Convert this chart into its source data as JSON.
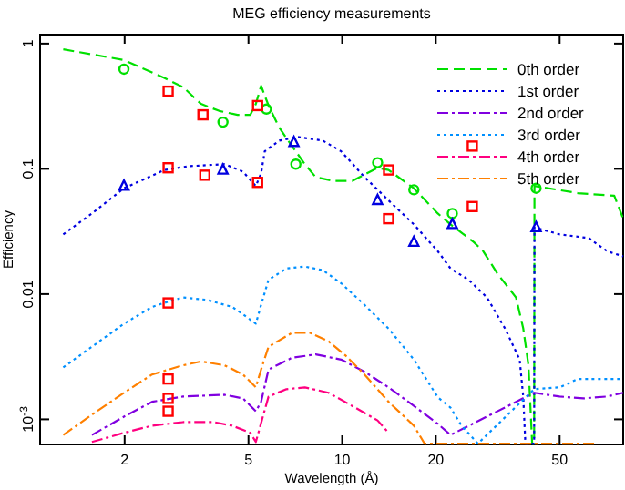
{
  "chart_data": {
    "type": "line",
    "title": "MEG efficiency measurements",
    "xlabel": "Wavelength (Å)",
    "ylabel": "Efficiency",
    "log": "xy",
    "xlim": [
      1.07,
      80
    ],
    "ylim": [
      0.00063,
      1.18
    ],
    "xticks": [
      2,
      5,
      10,
      20,
      50
    ],
    "yticks": [
      {
        "value": 0.001,
        "label": "10$^{-3}$"
      },
      0.01,
      0.1,
      1
    ],
    "grid": false,
    "legend": "top right",
    "series": [
      {
        "name": "0th order",
        "color": "#00e000",
        "line_style": "dashed",
        "x": [
          1.27,
          1.99,
          2.69,
          3.08,
          3.52,
          4.03,
          4.61,
          5.07,
          5.28,
          5.49,
          5.8,
          6.28,
          6.9,
          7.59,
          8.22,
          9.41,
          10.77,
          13.0,
          14.1,
          17.0,
          20.3,
          22.3,
          26.5,
          28.4,
          31.6,
          36.2,
          38.2,
          39.7,
          40.8,
          41.4,
          41.5,
          57.2,
          74.9,
          80
        ],
        "values": [
          0.9,
          0.74,
          0.53,
          0.45,
          0.33,
          0.29,
          0.27,
          0.27,
          0.33,
          0.46,
          0.32,
          0.213,
          0.152,
          0.109,
          0.086,
          0.08,
          0.08,
          0.102,
          0.098,
          0.07,
          0.044,
          0.036,
          0.026,
          0.022,
          0.0145,
          0.0094,
          0.0053,
          0.0027,
          0.00064,
          0.00064,
          0.073,
          0.064,
          0.061,
          0.04
        ]
      },
      {
        "name": "1st order",
        "color": "#0000e0",
        "line_style": "dotted",
        "x": [
          1.27,
          1.57,
          1.99,
          2.69,
          3.21,
          4.19,
          4.8,
          5.28,
          5.49,
          5.64,
          6.28,
          7.19,
          8.67,
          9.93,
          11.8,
          14.1,
          17.0,
          20.3,
          22.3,
          25.5,
          29.2,
          33.4,
          37.2,
          38.2,
          38.8,
          41.4,
          41.5,
          50.0,
          62,
          71,
          80
        ],
        "values": [
          0.03,
          0.044,
          0.07,
          0.098,
          0.105,
          0.109,
          0.095,
          0.073,
          0.092,
          0.138,
          0.168,
          0.18,
          0.168,
          0.138,
          0.086,
          0.056,
          0.036,
          0.022,
          0.016,
          0.013,
          0.0094,
          0.0053,
          0.003,
          0.0015,
          0.00064,
          0.00064,
          0.034,
          0.03,
          0.028,
          0.022,
          0.02
        ]
      },
      {
        "name": "2nd order",
        "color": "#8000e0",
        "line_style": "dashdot",
        "x": [
          1.57,
          1.99,
          2.45,
          3.08,
          4.19,
          4.8,
          5.28,
          5.49,
          5.8,
          6.9,
          8.22,
          9.93,
          11.8,
          14.1,
          17.0,
          20.3,
          22.3,
          41.4,
          50.0,
          59.6,
          71,
          80
        ],
        "values": [
          0.00075,
          0.00105,
          0.00138,
          0.00152,
          0.00157,
          0.00147,
          0.00116,
          0.00138,
          0.0025,
          0.0031,
          0.0033,
          0.003,
          0.0024,
          0.0018,
          0.00128,
          0.00092,
          0.00075,
          0.00163,
          0.00152,
          0.00147,
          0.00152,
          0.00163
        ]
      },
      {
        "name": "3rd order",
        "color": "#0090ff",
        "line_style": "dotted",
        "x": [
          1.27,
          1.57,
          1.99,
          2.45,
          2.76,
          3.08,
          3.67,
          4.43,
          4.8,
          5.28,
          5.49,
          5.8,
          6.62,
          7.59,
          8.67,
          9.93,
          11.8,
          14.1,
          17.0,
          20.3,
          22.3,
          24.2,
          27.3,
          41.4,
          50.0,
          57.2,
          68,
          80
        ],
        "values": [
          0.0026,
          0.0038,
          0.0058,
          0.0079,
          0.0087,
          0.0094,
          0.009,
          0.0079,
          0.0069,
          0.0058,
          0.0082,
          0.013,
          0.016,
          0.0166,
          0.0155,
          0.0122,
          0.0082,
          0.0053,
          0.003,
          0.0015,
          0.00124,
          0.00089,
          0.00064,
          0.00174,
          0.0018,
          0.0021,
          0.0021,
          0.0021
        ]
      },
      {
        "name": "4th order",
        "color": "#ff0080",
        "line_style": "dashdot",
        "x": [
          1.57,
          1.99,
          2.45,
          3.08,
          3.87,
          4.43,
          5.07,
          5.28,
          5.8,
          6.62,
          7.59,
          9.04,
          10.77,
          13.0,
          14.1
        ],
        "values": [
          0.00066,
          0.00078,
          0.00089,
          0.00095,
          0.00095,
          0.00089,
          0.00078,
          0.00066,
          0.00152,
          0.00174,
          0.0018,
          0.00163,
          0.00128,
          0.00098,
          0.00078
        ]
      },
      {
        "name": "5th order",
        "color": "#ff8000",
        "line_style": "dashdot",
        "x": [
          1.27,
          1.57,
          1.99,
          2.45,
          3.08,
          3.52,
          4.19,
          4.8,
          5.28,
          5.49,
          5.8,
          6.9,
          7.89,
          9.04,
          10.3,
          11.8,
          14.1,
          17.0,
          18.4,
          41.4,
          65.4
        ],
        "values": [
          0.00075,
          0.00109,
          0.00163,
          0.00228,
          0.0027,
          0.0029,
          0.0027,
          0.00228,
          0.0018,
          0.0025,
          0.0038,
          0.0049,
          0.0049,
          0.0042,
          0.0032,
          0.00228,
          0.00138,
          0.00089,
          0.00064,
          0.00064,
          0.00064
        ]
      },
      {
        "type": "scatter",
        "color": "#00e000",
        "marker": "circle",
        "x": [
          1.99,
          4.14,
          5.71,
          7.1,
          13.0,
          17.0,
          22.6,
          42.0
        ],
        "values": [
          0.625,
          0.236,
          0.3,
          0.109,
          0.112,
          0.068,
          0.044,
          0.07
        ]
      },
      {
        "type": "scatter",
        "color": "#0000e0",
        "marker": "triangle",
        "x": [
          1.99,
          4.14,
          7.0,
          13.0,
          17.0,
          22.6,
          42.0
        ],
        "values": [
          0.073,
          0.098,
          0.163,
          0.056,
          0.026,
          0.036,
          0.034
        ]
      },
      {
        "type": "scatter",
        "color": "#ff0000",
        "marker": "square",
        "x": [
          2.76,
          3.57,
          5.35,
          2.76,
          3.62,
          5.35,
          14.1,
          14.1,
          26.2,
          26.2,
          2.76,
          2.76,
          2.76,
          2.76
        ],
        "values": [
          0.417,
          0.27,
          0.32,
          0.102,
          0.089,
          0.078,
          0.098,
          0.04,
          0.152,
          0.05,
          0.0085,
          0.0021,
          0.00147,
          0.00116
        ]
      }
    ]
  }
}
